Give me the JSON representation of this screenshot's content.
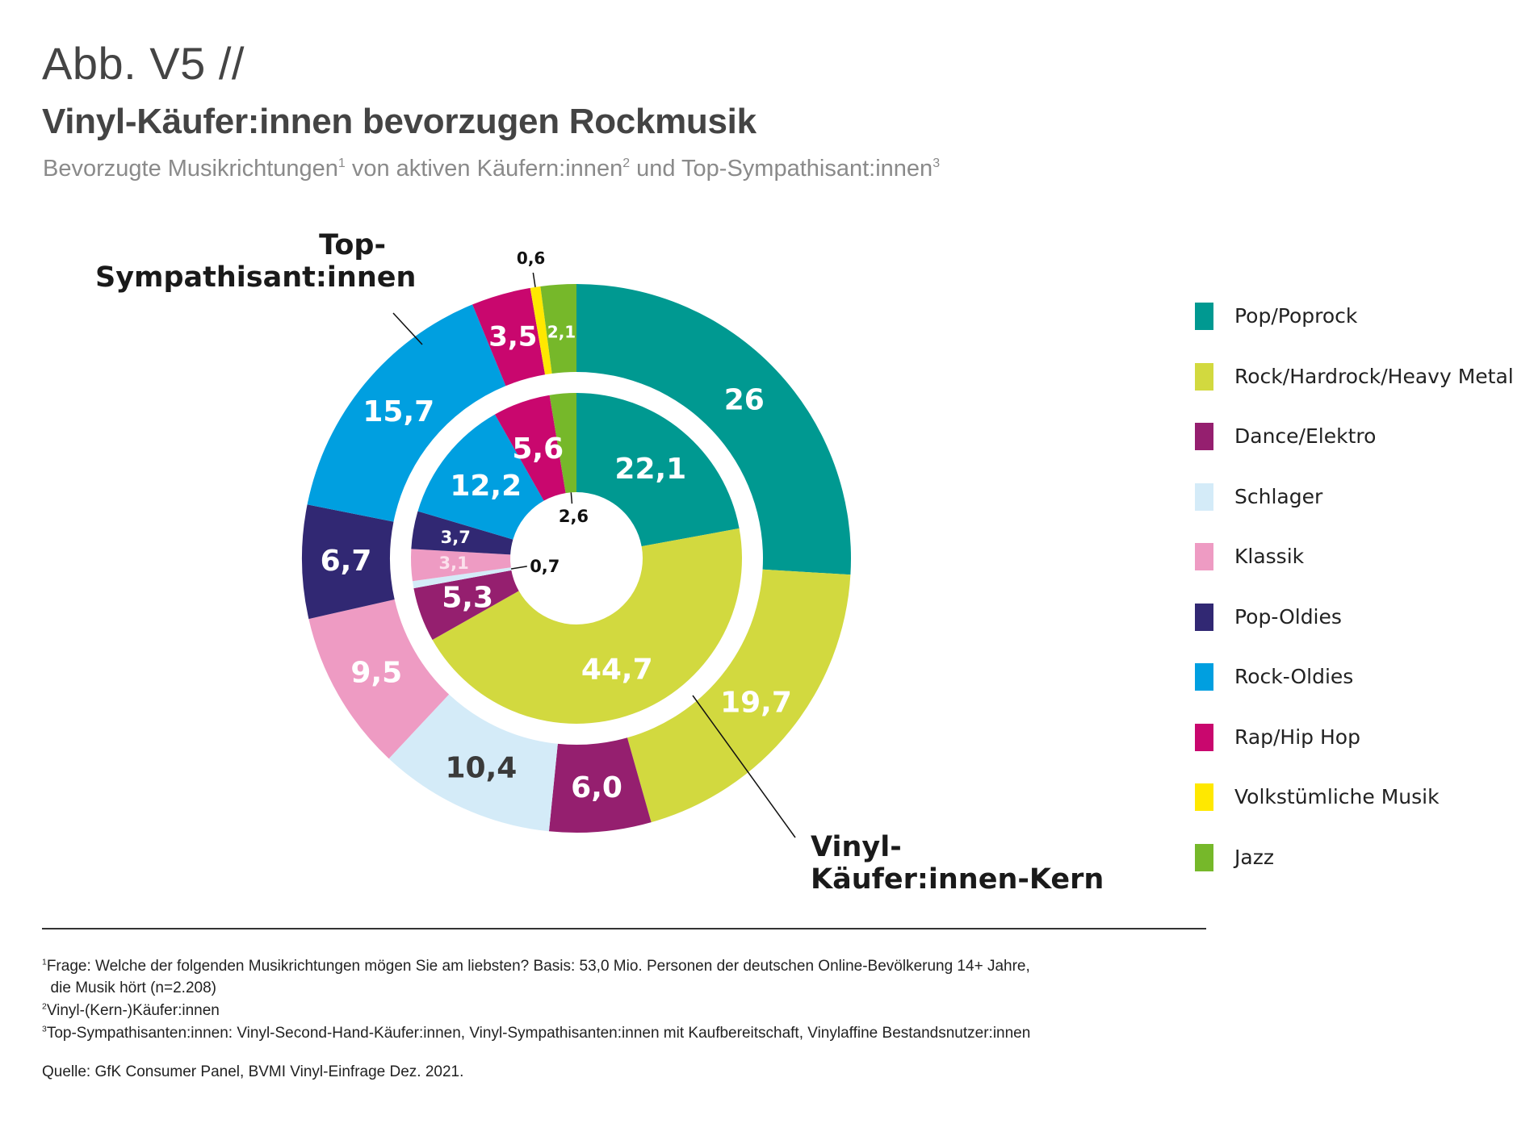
{
  "header": {
    "figure_label": "Abb. V5 //",
    "title": "Vinyl-Käufer:innen bevorzugen Rockmusik",
    "subtitle_parts": [
      "Bevorzugte Musikrichtungen",
      "1",
      " von aktiven Käufern:innen",
      "2",
      " und Top-Sympathisant:innen",
      "3"
    ]
  },
  "ring_labels": {
    "outer": [
      "Top-",
      "Sympathisant:innen"
    ],
    "inner": [
      "Vinyl-",
      "Käufer:innen-Kern"
    ]
  },
  "chart_data": {
    "type": "pie",
    "variant": "nested-donut",
    "title": "Vinyl-Käufer:innen bevorzugen Rockmusik",
    "categories": [
      "Pop/Poprock",
      "Rock/Hardrock/Heavy Metal",
      "Dance/Elektro",
      "Schlager",
      "Klassik",
      "Pop-Oldies",
      "Rock-Oldies",
      "Rap/Hip Hop",
      "Volkstümliche Musik",
      "Jazz"
    ],
    "colors": [
      "#009991",
      "#d2d93f",
      "#951f6f",
      "#d4ebf8",
      "#ee9bc3",
      "#312873",
      "#009fe0",
      "#c9076e",
      "#ffe800",
      "#76b82a"
    ],
    "unit": "%",
    "start_angle": "12 o'clock",
    "direction": "clockwise",
    "series": [
      {
        "name": "Top-Sympathisant:innen",
        "ring": "outer",
        "values": [
          26,
          19.7,
          6.0,
          10.4,
          9.5,
          6.7,
          15.7,
          3.5,
          0.6,
          2.1
        ],
        "labels": [
          "26",
          "19,7",
          "6,0",
          "10,4",
          "9,5",
          "6,7",
          "15,7",
          "3,5",
          "0,6",
          "2,1"
        ]
      },
      {
        "name": "Vinyl-Käufer:innen-Kern",
        "ring": "inner",
        "values": [
          22.1,
          44.7,
          5.3,
          0.7,
          3.1,
          3.7,
          12.2,
          5.6,
          0,
          2.6
        ],
        "labels": [
          "22,1",
          "44,7",
          "5,3",
          "0,7",
          "3,1",
          "3,7",
          "12,2",
          "5,6",
          "",
          "2,6"
        ]
      }
    ],
    "legend_position": "right"
  },
  "legend": [
    {
      "label": "Pop/Poprock",
      "color": "#009991"
    },
    {
      "label": "Rock/Hardrock/Heavy Metal",
      "color": "#d2d93f"
    },
    {
      "label": "Dance/Elektro",
      "color": "#951f6f"
    },
    {
      "label": "Schlager",
      "color": "#d4ebf8"
    },
    {
      "label": "Klassik",
      "color": "#ee9bc3"
    },
    {
      "label": "Pop-Oldies",
      "color": "#312873"
    },
    {
      "label": "Rock-Oldies",
      "color": "#009fe0"
    },
    {
      "label": "Rap/Hip Hop",
      "color": "#c9076e"
    },
    {
      "label": "Volkstümliche Musik",
      "color": "#ffe800"
    },
    {
      "label": "Jazz",
      "color": "#76b82a"
    }
  ],
  "footnotes": [
    {
      "mark": "1",
      "text": "Frage: Welche der folgenden Musikrichtungen mögen Sie am liebsten? Basis: 53,0 Mio. Personen der deutschen Online-Bevölkerung 14+ Jahre,"
    },
    {
      "mark": "",
      "text": "  die Musik hört (n=2.208)"
    },
    {
      "mark": "2",
      "text": "Vinyl-(Kern-)Käufer:innen"
    },
    {
      "mark": "3",
      "text": "Top-Sympathisanten:innen: Vinyl-Second-Hand-Käufer:innen, Vinyl-Sympathisanten:innen mit Kaufbereitschaft, Vinylaffine Bestandsnutzer:innen"
    }
  ],
  "source": "Quelle: GfK Consumer Panel, BVMI Vinyl-Einfrage Dez. 2021."
}
